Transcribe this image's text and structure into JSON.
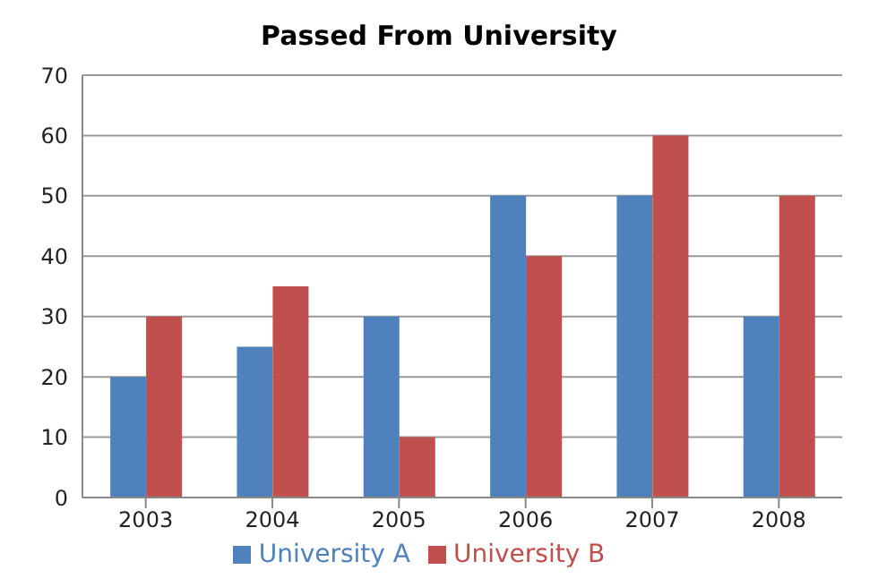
{
  "chart_data": {
    "type": "bar",
    "title": "Passed From University",
    "categories": [
      "2003",
      "2004",
      "2005",
      "2006",
      "2007",
      "2008"
    ],
    "series": [
      {
        "name": "University A",
        "color": "#4f81bd",
        "values": [
          20,
          25,
          30,
          50,
          50,
          30
        ]
      },
      {
        "name": "University B",
        "color": "#c0504d",
        "values": [
          30,
          35,
          10,
          40,
          60,
          50
        ]
      }
    ],
    "ylim": [
      0,
      70
    ],
    "yticks": [
      0,
      10,
      20,
      30,
      40,
      50,
      60,
      70
    ],
    "grid": "y",
    "legend": "bottom"
  }
}
